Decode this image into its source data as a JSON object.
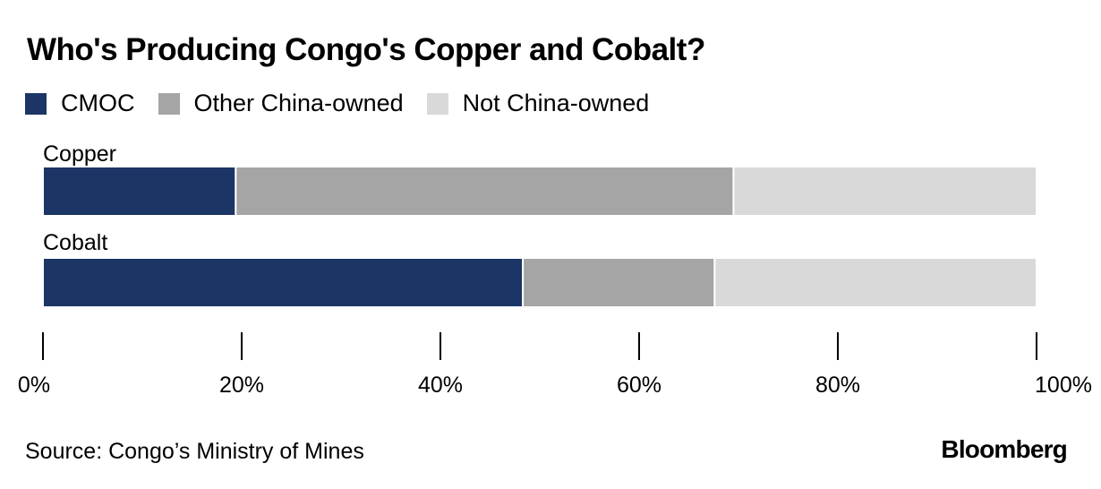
{
  "title": "Who's Producing Congo's Copper and Cobalt?",
  "source": "Source: Congo’s Ministry of Mines",
  "brand": "Bloomberg",
  "colors": {
    "CMOC": "#1b3564",
    "Other China-owned": "#a5a5a5",
    "Not China-owned": "#d9d9d9",
    "axis": "#000000"
  },
  "legend": [
    "CMOC",
    "Other China-owned",
    "Not China-owned"
  ],
  "chart_data": {
    "type": "bar",
    "orientation": "horizontal",
    "stacked": true,
    "categories": [
      "Copper",
      "Cobalt"
    ],
    "series": [
      {
        "name": "CMOC",
        "values": [
          19.4,
          48.3
        ]
      },
      {
        "name": "Other China-owned",
        "values": [
          50.1,
          19.3
        ]
      },
      {
        "name": "Not China-owned",
        "values": [
          30.5,
          32.4
        ]
      }
    ],
    "xlim": [
      0,
      100
    ],
    "xticks": [
      0,
      20,
      40,
      60,
      80,
      100
    ],
    "xtick_labels": [
      "0%",
      "20%",
      "40%",
      "60%",
      "80%",
      "100%"
    ],
    "grid": false,
    "legend_position": "top-left"
  }
}
